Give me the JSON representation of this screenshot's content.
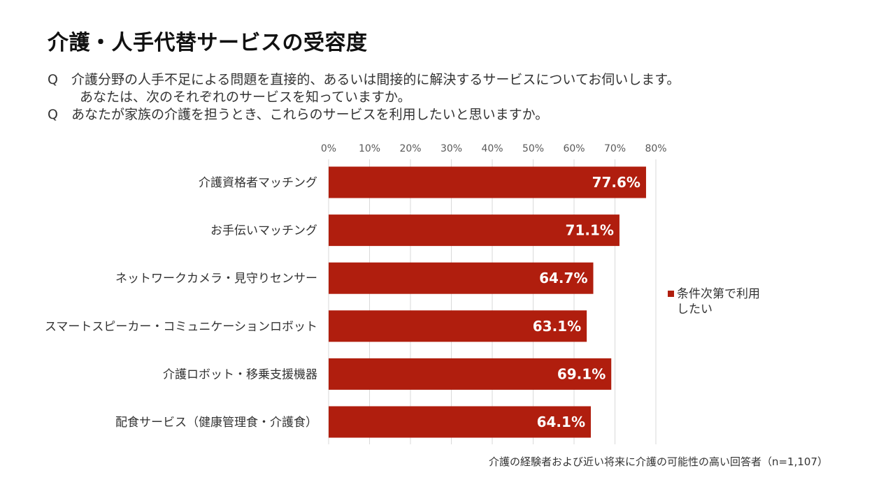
{
  "title": "介護・人手代替サービスの受容度",
  "questions": [
    {
      "mark": "Q",
      "lines": [
        "介護分野の人手不足による問題を直接的、あるいは間接的に解決するサービスについてお伺いします。",
        "あなたは、次のそれぞれのサービスを知っていますか。"
      ]
    },
    {
      "mark": "Q",
      "lines": [
        "あなたが家族の介護を担うとき、これらのサービスを利用したいと思いますか。"
      ]
    }
  ],
  "legend": {
    "label": "条件次第で利用したい",
    "label_line1": "条件次第で利用",
    "label_line2": "したい"
  },
  "source_note": "介護の経験者および近い将来に介護の可能性の高い回答者（n=1,107）",
  "colors": {
    "bar": "#B01E0E",
    "grid": "#D9D9D9",
    "bar_label": "#FFFFFF",
    "axis_text": "#595959"
  },
  "chart_data": {
    "type": "bar",
    "orientation": "horizontal",
    "categories": [
      "介護資格者マッチング",
      "お手伝いマッチング",
      "ネットワークカメラ・見守りセンサー",
      "スマートスピーカー・コミュニケーションロボット",
      "介護ロボット・移乗支援機器",
      "配食サービス（健康管理食・介護食）"
    ],
    "series": [
      {
        "name": "条件次第で利用したい",
        "values": [
          77.6,
          71.1,
          64.7,
          63.1,
          69.1,
          64.1
        ]
      }
    ],
    "data_labels": [
      "77.6%",
      "71.1%",
      "64.7%",
      "63.1%",
      "69.1%",
      "64.1%"
    ],
    "xlim": [
      0,
      80
    ],
    "xticks": [
      "0%",
      "10%",
      "20%",
      "30%",
      "40%",
      "50%",
      "60%",
      "70%",
      "80%"
    ],
    "xlabel": "",
    "ylabel": "",
    "grid": true,
    "legend_position": "right"
  }
}
